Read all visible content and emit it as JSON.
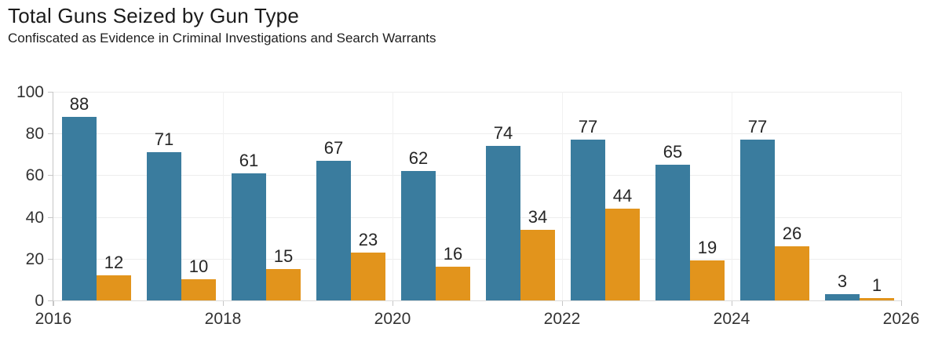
{
  "header": {
    "title": "Total Guns Seized by Gun Type",
    "subtitle": "Confiscated as Evidence in Criminal Investigations and Search Warrants"
  },
  "chart_data": {
    "type": "bar",
    "grouped": true,
    "title": "Total Guns Seized by Gun Type",
    "subtitle": "Confiscated as Evidence in Criminal Investigations and Search Warrants",
    "categories": [
      2016,
      2017,
      2018,
      2019,
      2020,
      2021,
      2022,
      2023,
      2024,
      2025
    ],
    "series": [
      {
        "name": "blue",
        "color": "#3A7C9E",
        "values": [
          88,
          71,
          61,
          67,
          62,
          74,
          77,
          65,
          77,
          3
        ]
      },
      {
        "name": "orange",
        "color": "#E2941C",
        "values": [
          12,
          10,
          15,
          23,
          16,
          34,
          44,
          19,
          26,
          1
        ]
      }
    ],
    "value_labels": true,
    "xlabel": "",
    "ylabel": "",
    "xlim": [
      2016,
      2026
    ],
    "ylim": [
      0,
      100
    ],
    "xticks": [
      2016,
      2018,
      2020,
      2022,
      2024,
      2026
    ],
    "yticks": [
      0,
      20,
      40,
      60,
      80,
      100
    ],
    "grid": true,
    "legend": false,
    "colors": {
      "bar_blue": "#3A7C9E",
      "bar_orange": "#E2941C",
      "gridline": "#ededed",
      "axis": "#c6c6c6",
      "text": "#262626"
    }
  }
}
